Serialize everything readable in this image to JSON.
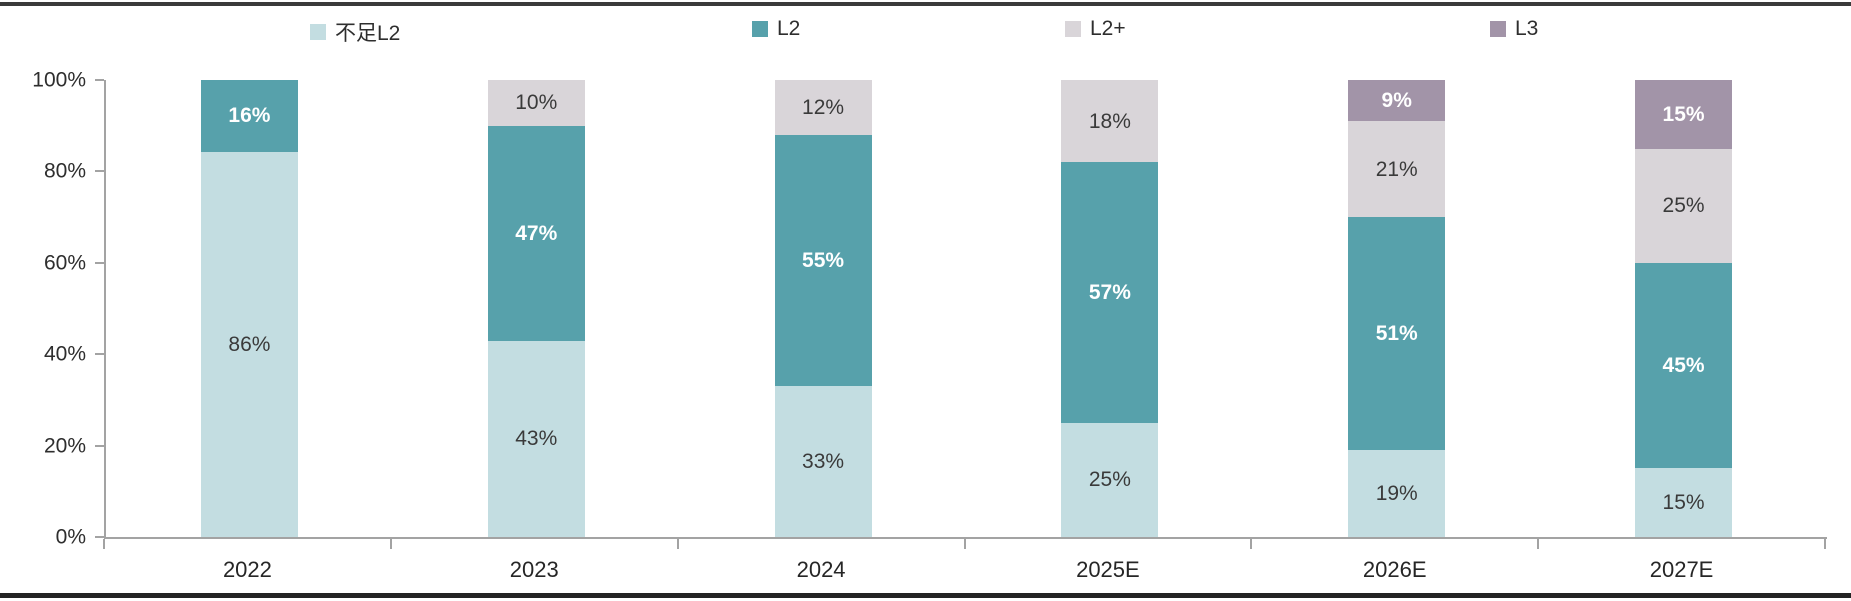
{
  "page": {
    "background": "#ffffff",
    "top_border_color": "#3a3a3a",
    "bottom_border_color": "#232323"
  },
  "chart_data": {
    "type": "bar",
    "variant": "stacked-100-percent",
    "title": "",
    "categories": [
      "2022",
      "2023",
      "2024",
      "2025E",
      "2026E",
      "2027E"
    ],
    "series": [
      {
        "name": "不足L2",
        "slug": "below-l2",
        "color": "#c3dde1",
        "label_color": "#3a3a3a",
        "label_bold": false,
        "values": [
          86,
          43,
          33,
          25,
          19,
          15
        ]
      },
      {
        "name": "L2",
        "slug": "l2",
        "color": "#57a1ab",
        "label_color": "#ffffff",
        "label_bold": true,
        "values": [
          16,
          47,
          55,
          57,
          51,
          45
        ]
      },
      {
        "name": "L2+",
        "slug": "l2-plus",
        "color": "#d9d5d9",
        "label_color": "#3a3a3a",
        "label_bold": false,
        "values": [
          0,
          10,
          12,
          18,
          21,
          25
        ]
      },
      {
        "name": "L3",
        "slug": "l3",
        "color": "#a294a8",
        "label_color": "#ffffff",
        "label_bold": true,
        "values": [
          0,
          0,
          0,
          0,
          9,
          15
        ]
      }
    ],
    "data_label_suffix": "%",
    "y_axis": {
      "min": 0,
      "max": 100,
      "tick_step": 20,
      "tick_labels": [
        "0%",
        "20%",
        "40%",
        "60%",
        "80%",
        "100%"
      ]
    },
    "x_axis": {
      "labels": [
        "2022",
        "2023",
        "2024",
        "2025E",
        "2026E",
        "2027E"
      ]
    },
    "legend": {
      "position": "top",
      "items": [
        "不足L2",
        "L2",
        "L2+",
        "L3"
      ]
    },
    "grid": false,
    "axis_color": "#a3a3a3",
    "text_color": "#2e2e2e"
  }
}
